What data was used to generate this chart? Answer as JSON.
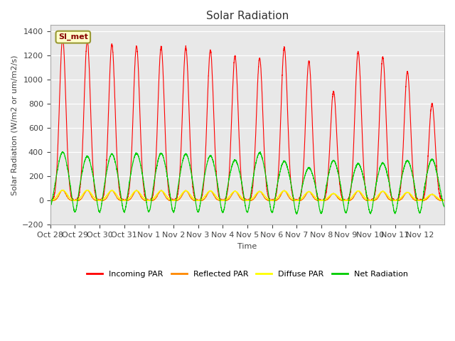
{
  "title": "Solar Radiation",
  "ylabel": "Solar Radiation (W/m2 or um/m2/s)",
  "xlabel": "Time",
  "ylim": [
    -200,
    1450
  ],
  "annotation": "SI_met",
  "bg_color": "#e8e8e8",
  "fig_bg": "#ffffff",
  "x_tick_labels": [
    "Oct 28",
    "Oct 29",
    "Oct 30",
    "Oct 31",
    "Nov 1",
    "Nov 2",
    "Nov 3",
    "Nov 4",
    "Nov 5",
    "Nov 6",
    "Nov 7",
    "Nov 8",
    "Nov 9",
    "Nov 10",
    "Nov 11",
    "Nov 12"
  ],
  "legend": [
    {
      "label": "Incoming PAR",
      "color": "#ff0000"
    },
    {
      "label": "Reflected PAR",
      "color": "#ff8800"
    },
    {
      "label": "Diffuse PAR",
      "color": "#ffff00"
    },
    {
      "label": "Net Radiation",
      "color": "#00cc00"
    }
  ],
  "day_peaks_incoming": [
    1340,
    1320,
    1290,
    1275,
    1270,
    1265,
    1240,
    1195,
    1175,
    1265,
    1150,
    900,
    1230,
    1185,
    1065,
    800
  ],
  "day_peaks_net": [
    400,
    365,
    385,
    390,
    390,
    385,
    370,
    335,
    395,
    325,
    270,
    330,
    305,
    310,
    330,
    340
  ],
  "n_days": 16,
  "pts_per_day": 288
}
